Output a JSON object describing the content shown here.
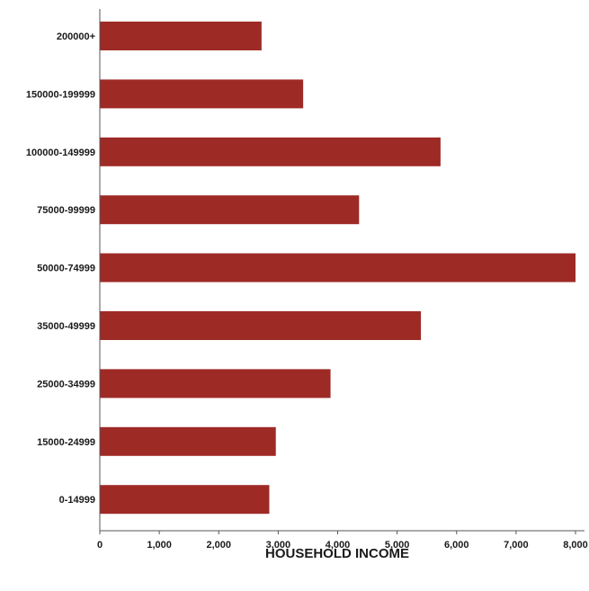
{
  "chart_data": {
    "type": "bar",
    "orientation": "horizontal",
    "categories": [
      "200000+",
      "150000-199999",
      "100000-149999",
      "75000-99999",
      "50000-74999",
      "35000-49999",
      "25000-34999",
      "15000-24999",
      "0-14999"
    ],
    "values": [
      2720,
      3420,
      5730,
      4360,
      8000,
      5400,
      3880,
      2960,
      2850
    ],
    "xlabel": "HOUSEHOLD INCOME",
    "ylabel": "",
    "xlim": [
      0,
      8000
    ],
    "x_ticks": [
      "0",
      "1,000",
      "2,000",
      "3,000",
      "4,000",
      "5,000",
      "6,000",
      "7,000",
      "8,000"
    ],
    "grid": false,
    "bar_color": "#9e2a26"
  }
}
